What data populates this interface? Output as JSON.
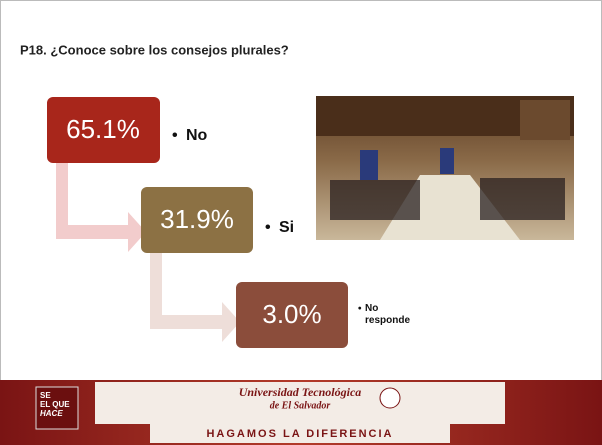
{
  "title": "P18. ¿Conoce sobre los consejos plurales?",
  "items": [
    {
      "value": "65.1%",
      "label": "No"
    },
    {
      "value": "31.9%",
      "label": "Si"
    },
    {
      "value": "3.0%",
      "label": "No responde"
    }
  ],
  "footer": {
    "badge": [
      "SE",
      "EL QUE",
      "HACE"
    ],
    "university": [
      "Universidad Tecnológica",
      "de El Salvador"
    ],
    "slogan": "HAGAMOS LA DIFERENCIA"
  }
}
